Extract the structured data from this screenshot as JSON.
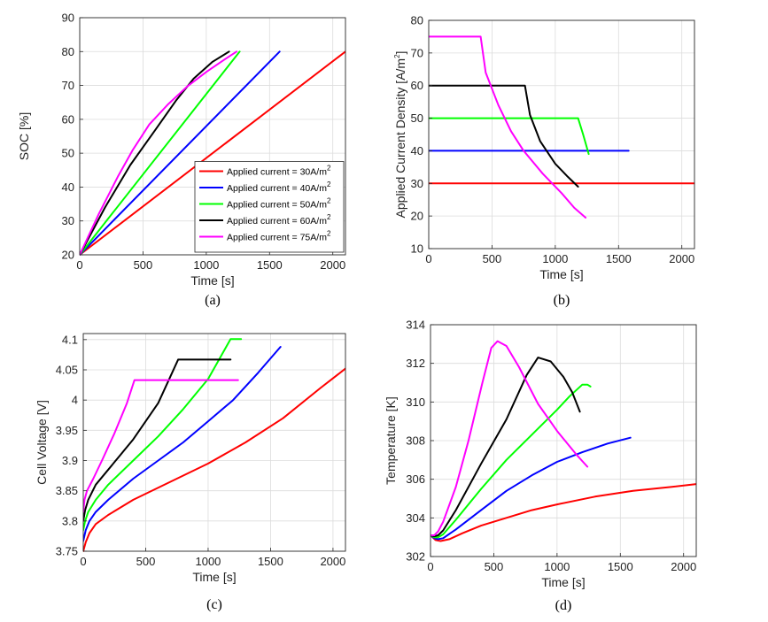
{
  "figure": {
    "legend_panel": 0,
    "legend": {
      "position": "lower-right",
      "entries": [
        {
          "label": "Applied current = 30A/m",
          "superscript": "2",
          "color": "#ff0000"
        },
        {
          "label": "Applied current = 40A/m",
          "superscript": "2",
          "color": "#0000ff"
        },
        {
          "label": "Applied current = 50A/m",
          "superscript": "2",
          "color": "#00ff00"
        },
        {
          "label": "Applied current = 60A/m",
          "superscript": "2",
          "color": "#000000"
        },
        {
          "label": "Applied current = 75A/m",
          "superscript": "2",
          "color": "#ff00ff"
        }
      ]
    }
  },
  "chart_data": [
    {
      "type": "line",
      "caption": "(a)",
      "xlabel": "Time [s]",
      "ylabel": "SOC [%]",
      "xlim": [
        0,
        2100
      ],
      "ylim": [
        20,
        90
      ],
      "xticks": [
        0,
        500,
        1000,
        1500,
        2000
      ],
      "yticks": [
        20,
        30,
        40,
        50,
        60,
        70,
        80,
        90
      ],
      "grid": true,
      "series": [
        {
          "color": "#ff0000",
          "x": [
            0,
            2100
          ],
          "y": [
            20,
            80
          ]
        },
        {
          "color": "#0000ff",
          "x": [
            0,
            1580
          ],
          "y": [
            20,
            80
          ]
        },
        {
          "color": "#00ff00",
          "x": [
            0,
            1264
          ],
          "y": [
            20,
            80
          ]
        },
        {
          "color": "#000000",
          "x": [
            0,
            200,
            400,
            600,
            760,
            900,
            1050,
            1180
          ],
          "y": [
            20,
            34,
            46.5,
            57,
            65.5,
            72,
            77,
            80
          ]
        },
        {
          "color": "#ff00ff",
          "x": [
            0,
            150,
            300,
            420,
            550,
            700,
            850,
            1000,
            1150,
            1240
          ],
          "y": [
            20,
            32,
            43,
            51,
            58.5,
            64.5,
            69.7,
            74,
            77.8,
            80
          ]
        }
      ]
    },
    {
      "type": "line",
      "caption": "(b)",
      "xlabel": "Time [s]",
      "ylabel": "Applied Current Density [A/m",
      "ylabel_superscript": "2",
      "ylabel_suffix": "]",
      "xlim": [
        0,
        2100
      ],
      "ylim": [
        10,
        80
      ],
      "xticks": [
        0,
        500,
        1000,
        1500,
        2000
      ],
      "yticks": [
        10,
        20,
        30,
        40,
        50,
        60,
        70,
        80
      ],
      "grid": true,
      "series": [
        {
          "color": "#ff0000",
          "x": [
            0,
            2100
          ],
          "y": [
            30,
            30
          ]
        },
        {
          "color": "#0000ff",
          "x": [
            0,
            1580
          ],
          "y": [
            40,
            40
          ]
        },
        {
          "color": "#00ff00",
          "x": [
            0,
            1180,
            1220,
            1264
          ],
          "y": [
            50,
            50,
            45,
            39
          ]
        },
        {
          "color": "#000000",
          "x": [
            0,
            760,
            800,
            880,
            1000,
            1100,
            1180
          ],
          "y": [
            60,
            60,
            51,
            43,
            36,
            32,
            29
          ]
        },
        {
          "color": "#ff00ff",
          "x": [
            0,
            410,
            450,
            550,
            650,
            750,
            900,
            1050,
            1150,
            1240
          ],
          "y": [
            75,
            75,
            64,
            54,
            46,
            40,
            33,
            27,
            22.5,
            19.5
          ]
        }
      ]
    },
    {
      "type": "line",
      "caption": "(c)",
      "xlabel": "Time [s]",
      "ylabel": "Cell Voltage [V]",
      "xlim": [
        0,
        2100
      ],
      "ylim": [
        3.75,
        4.11
      ],
      "xticks": [
        0,
        500,
        1000,
        1500,
        2000
      ],
      "yticks": [
        3.75,
        3.8,
        3.85,
        3.9,
        3.95,
        4,
        4.05,
        4.1
      ],
      "ytick_labels": [
        "3.75",
        "3.8",
        "3.85",
        "3.9",
        "3.95",
        "4",
        "4.05",
        "4.1"
      ],
      "grid": true,
      "series": [
        {
          "color": "#ff0000",
          "x": [
            0,
            20,
            50,
            100,
            200,
            400,
            700,
            1000,
            1300,
            1600,
            1900,
            2100
          ],
          "y": [
            3.75,
            3.765,
            3.78,
            3.795,
            3.81,
            3.835,
            3.865,
            3.895,
            3.93,
            3.97,
            4.02,
            4.052
          ]
        },
        {
          "color": "#0000ff",
          "x": [
            0,
            20,
            50,
            100,
            200,
            400,
            600,
            800,
            1000,
            1200,
            1400,
            1580
          ],
          "y": [
            3.767,
            3.785,
            3.8,
            3.815,
            3.835,
            3.87,
            3.9,
            3.93,
            3.965,
            4.0,
            4.045,
            4.088
          ]
        },
        {
          "color": "#00ff00",
          "x": [
            0,
            15,
            40,
            100,
            200,
            400,
            600,
            800,
            1000,
            1180,
            1264
          ],
          "y": [
            3.785,
            3.8,
            3.815,
            3.835,
            3.86,
            3.9,
            3.94,
            3.985,
            4.035,
            4.101,
            4.101
          ]
        },
        {
          "color": "#000000",
          "x": [
            0,
            15,
            40,
            100,
            200,
            300,
            400,
            500,
            600,
            700,
            760,
            1180
          ],
          "y": [
            3.8,
            3.818,
            3.835,
            3.86,
            3.885,
            3.91,
            3.935,
            3.965,
            3.995,
            4.04,
            4.067,
            4.067
          ]
        },
        {
          "color": "#ff00ff",
          "x": [
            0,
            10,
            30,
            80,
            150,
            250,
            350,
            410,
            1240
          ],
          "y": [
            3.815,
            3.835,
            3.85,
            3.87,
            3.9,
            3.945,
            3.995,
            4.033,
            4.033
          ]
        }
      ]
    },
    {
      "type": "line",
      "caption": "(d)",
      "xlabel": "Time [s]",
      "ylabel": "Temperature [K]",
      "xlim": [
        0,
        2100
      ],
      "ylim": [
        302,
        314
      ],
      "xticks": [
        0,
        500,
        1000,
        1500,
        2000
      ],
      "yticks": [
        302,
        304,
        306,
        308,
        310,
        312,
        314
      ],
      "grid": true,
      "series": [
        {
          "color": "#ff0000",
          "x": [
            0,
            40,
            80,
            150,
            250,
            400,
            600,
            800,
            1000,
            1300,
            1600,
            1900,
            2100
          ],
          "y": [
            303.1,
            302.85,
            302.8,
            302.9,
            303.2,
            303.6,
            304.0,
            304.4,
            304.7,
            305.1,
            305.4,
            305.6,
            305.75
          ]
        },
        {
          "color": "#0000ff",
          "x": [
            0,
            30,
            60,
            100,
            200,
            400,
            600,
            800,
            1000,
            1200,
            1400,
            1580
          ],
          "y": [
            303.1,
            302.95,
            302.9,
            302.95,
            303.4,
            304.4,
            305.4,
            306.2,
            306.9,
            307.4,
            307.85,
            308.15
          ]
        },
        {
          "color": "#00ff00",
          "x": [
            0,
            30,
            60,
            100,
            200,
            400,
            600,
            800,
            1000,
            1100,
            1200,
            1240,
            1264
          ],
          "y": [
            303.1,
            303.0,
            303.0,
            303.15,
            303.9,
            305.5,
            307.0,
            308.3,
            309.6,
            310.3,
            310.9,
            310.9,
            310.8
          ]
        },
        {
          "color": "#000000",
          "x": [
            0,
            30,
            60,
            100,
            200,
            400,
            600,
            760,
            850,
            950,
            1050,
            1120,
            1180
          ],
          "y": [
            303.1,
            303.05,
            303.1,
            303.35,
            304.4,
            306.8,
            309.1,
            311.4,
            312.3,
            312.1,
            311.3,
            310.5,
            309.5
          ]
        },
        {
          "color": "#ff00ff",
          "x": [
            0,
            30,
            60,
            100,
            200,
            300,
            410,
            480,
            530,
            600,
            700,
            850,
            1000,
            1150,
            1240
          ],
          "y": [
            303.1,
            303.1,
            303.3,
            303.8,
            305.6,
            308.0,
            311.0,
            312.8,
            313.15,
            312.9,
            311.8,
            309.9,
            308.5,
            307.3,
            306.65
          ]
        }
      ]
    }
  ]
}
